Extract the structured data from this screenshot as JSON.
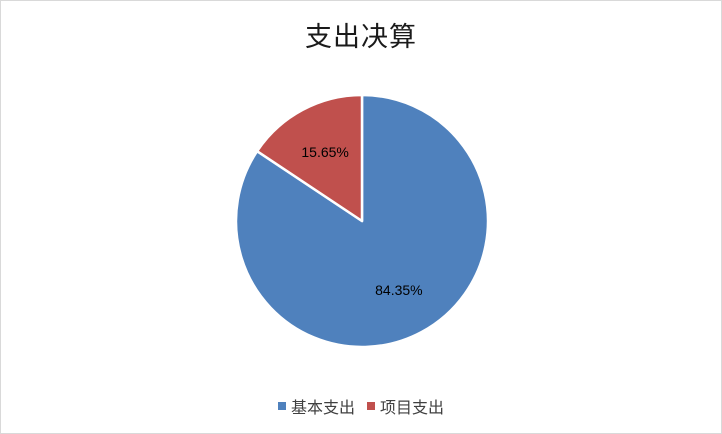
{
  "chart_data": {
    "type": "pie",
    "title": "支出决算",
    "legend_position": "bottom",
    "slices": [
      {
        "name": "基本支出",
        "value": 84.35,
        "label": "84.35%",
        "color": "#4f81bd"
      },
      {
        "name": "项目支出",
        "value": 15.65,
        "label": "15.65%",
        "color": "#c0504d"
      }
    ]
  }
}
